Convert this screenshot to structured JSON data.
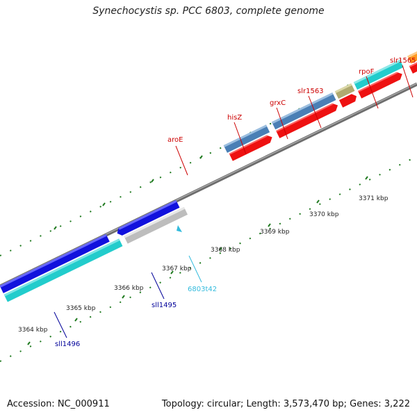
{
  "title": "Synechocystis sp. PCC 6803, complete genome",
  "footer": {
    "accession": "Accession: NC_000911",
    "stats": "Topology: circular; Length: 3,573,470 bp; Genes: 3,222"
  },
  "kbp_labels": [
    "3364 kbp",
    "3365 kbp",
    "3366 kbp",
    "3367 kbp",
    "3368 kbp",
    "3369 kbp",
    "3370 kbp",
    "3371 kbp"
  ],
  "gene_labels": {
    "aroE": "aroE",
    "hisZ": "hisZ",
    "grxC": "grxC",
    "slr1563": "slr1563",
    "rpoF": "rpoF",
    "slr1565": "slr1565",
    "sll1496": "sll1496",
    "sll1495": "sll1495",
    "t6803t42": "6803t42"
  },
  "colors": {
    "backbone": "#8a8a8a",
    "tick": "#1f7a1f",
    "red": "#ee1111",
    "steelblue": "#4a7fb5",
    "cyan": "#22cccc",
    "blue": "#1111dd",
    "gray_gene": "#bbbbbb",
    "olive": "#b0aa70",
    "orange": "#ff9922",
    "label_red": "#cc0000",
    "label_blue": "#000099",
    "label_cyan": "#33bbdd"
  }
}
